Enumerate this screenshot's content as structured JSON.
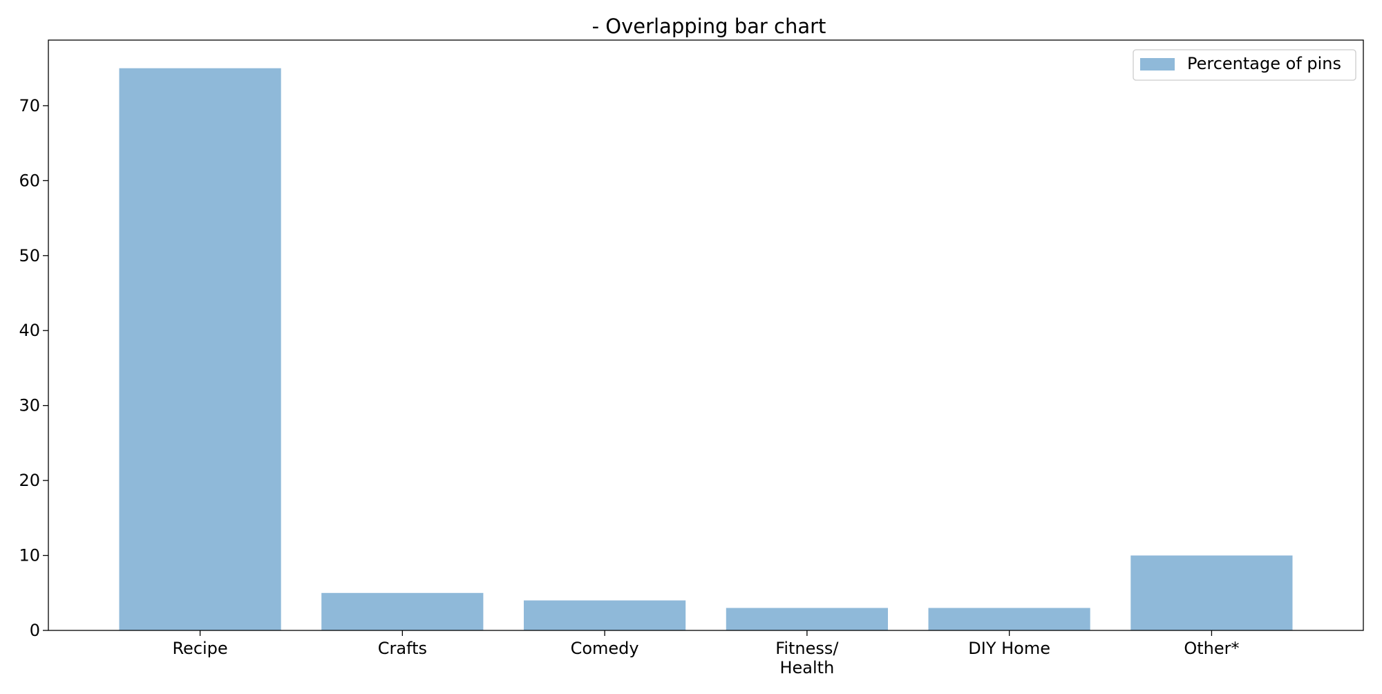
{
  "chart_data": {
    "type": "bar",
    "title": "- Overlapping bar chart",
    "xlabel": "",
    "ylabel": "",
    "categories": [
      "Recipe",
      "Crafts",
      "Comedy",
      "Fitness/\nHealth",
      "DIY Home",
      "Other*"
    ],
    "series": [
      {
        "name": "Percentage of pins",
        "values": [
          75,
          5,
          4,
          3,
          3,
          10
        ],
        "color": "#8fb9d9"
      }
    ],
    "ylim": [
      0,
      78.75
    ],
    "yticks": [
      0,
      10,
      20,
      30,
      40,
      50,
      60,
      70
    ],
    "grid": false,
    "legend_position": "top-right"
  }
}
